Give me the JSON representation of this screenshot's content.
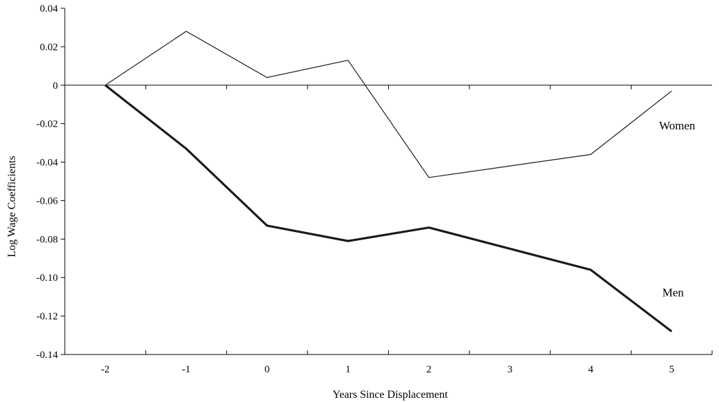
{
  "chart_data": {
    "type": "line",
    "title": "",
    "xlabel": "Years Since Displacement",
    "ylabel": "Log Wage Coefficients",
    "x": [
      -2,
      -1,
      0,
      1,
      2,
      3,
      4,
      5
    ],
    "x_tick_labels": [
      "-2",
      "-1",
      "0",
      "1",
      "2",
      "3",
      "4",
      "5"
    ],
    "ylim": [
      -0.14,
      0.04
    ],
    "y_ticks": [
      0.04,
      0.02,
      0,
      -0.02,
      -0.04,
      -0.06,
      -0.08,
      -0.1,
      -0.12,
      -0.14
    ],
    "y_tick_labels": [
      "0.04",
      "0.02",
      "0",
      "-0.02",
      "-0.04",
      "-0.06",
      "-0.08",
      "-0.10",
      "-0.12",
      "-0.14"
    ],
    "grid": false,
    "legend": "none",
    "series": [
      {
        "name": "Women",
        "values": [
          0,
          0.028,
          0.004,
          0.013,
          -0.048,
          -0.042,
          -0.036,
          -0.003
        ],
        "color": "#1a1a1a",
        "line_weight": "thin"
      },
      {
        "name": "Men",
        "values": [
          0,
          -0.033,
          -0.073,
          -0.081,
          -0.074,
          -0.085,
          -0.096,
          -0.128
        ],
        "color": "#1a1a1a",
        "line_weight": "thick"
      }
    ]
  }
}
